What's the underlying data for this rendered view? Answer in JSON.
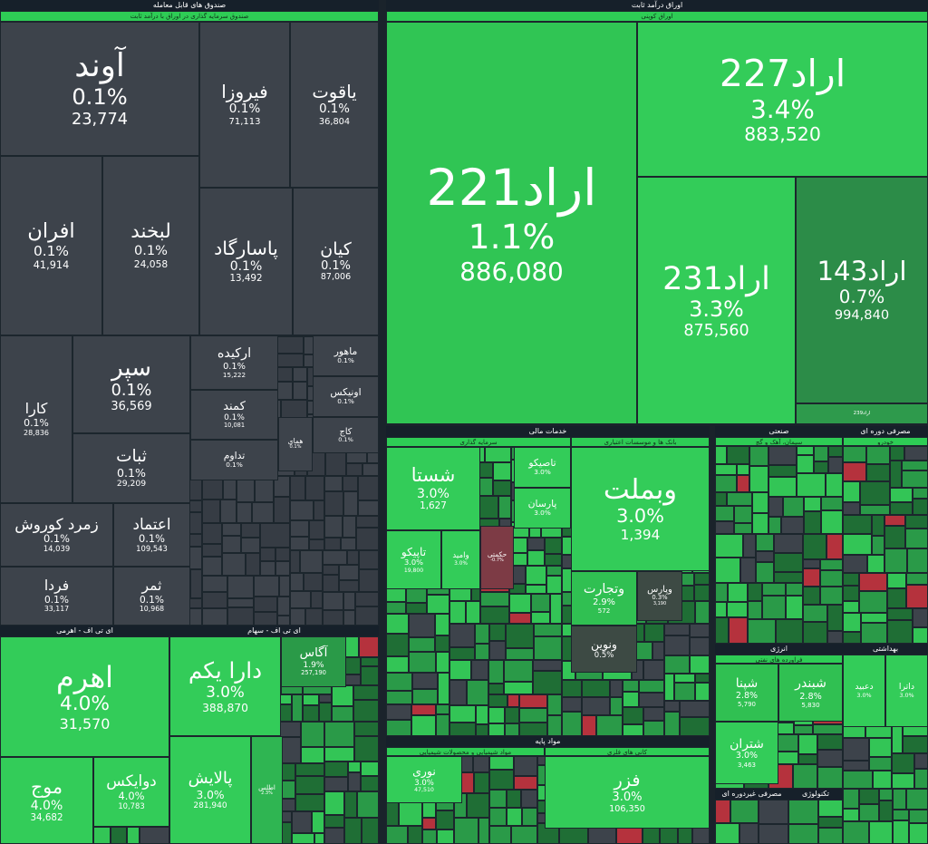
{
  "sections": [
    {
      "title": "صندوق های قابل معامله",
      "groups": [
        {
          "title": "صندوق سرمایه گذاری در اوراق با درآمد ثابت",
          "tiles": [
            {
              "name": "آوند",
              "change": "0.1%",
              "value": "23,774",
              "color": "#3d434b"
            },
            {
              "name": "فیروزا",
              "change": "0.1%",
              "value": "71,113",
              "color": "#3d434b"
            },
            {
              "name": "یاقوت",
              "change": "0.1%",
              "value": "36,804",
              "color": "#3d434b"
            },
            {
              "name": "افران",
              "change": "0.1%",
              "value": "41,914",
              "color": "#3d434b"
            },
            {
              "name": "لبخند",
              "change": "0.1%",
              "value": "24,058",
              "color": "#3d434b"
            },
            {
              "name": "پاسارگاد",
              "change": "0.1%",
              "value": "13,492",
              "color": "#3d434b"
            },
            {
              "name": "کیان",
              "change": "0.1%",
              "value": "87,006",
              "color": "#3d434b"
            },
            {
              "name": "کارا",
              "change": "0.1%",
              "value": "28,836",
              "color": "#3d434b"
            },
            {
              "name": "سپر",
              "change": "0.1%",
              "value": "36,569",
              "color": "#3d434b"
            },
            {
              "name": "ثبات",
              "change": "0.1%",
              "value": "29,209",
              "color": "#3d434b"
            },
            {
              "name": "ارکیده",
              "change": "0.1%",
              "value": "15,222",
              "color": "#3d434b"
            },
            {
              "name": "ماهور",
              "change": "0.1%",
              "color": "#3d434b"
            },
            {
              "name": "اونیکس",
              "change": "0.1%",
              "color": "#3d434b"
            },
            {
              "name": "کمند",
              "change": "0.1%",
              "value": "10,081",
              "color": "#3d434b"
            },
            {
              "name": "همای",
              "change": "0.1%",
              "color": "#3d434b"
            },
            {
              "name": "کاج",
              "change": "0.1%",
              "color": "#3d434b"
            },
            {
              "name": "تداوم",
              "change": "0.1%",
              "color": "#3d434b"
            },
            {
              "name": "زمرد کوروش",
              "change": "0.1%",
              "value": "14,039",
              "color": "#3d434b"
            },
            {
              "name": "اعتماد",
              "change": "0.1%",
              "value": "109,543",
              "color": "#3d434b"
            },
            {
              "name": "فردا",
              "change": "0.1%",
              "value": "33,117",
              "color": "#3d434b"
            },
            {
              "name": "ثمر",
              "change": "0.1%",
              "value": "10,968",
              "color": "#3d434b"
            }
          ]
        }
      ]
    },
    {
      "title": "اوراق درآمد ثابت",
      "groups": [
        {
          "title": "اوراق کوپنی",
          "tiles": [
            {
              "name": "اراد221",
              "change": "1.1%",
              "value": "886,080",
              "color": "#30c554"
            },
            {
              "name": "اراد227",
              "change": "3.4%",
              "value": "883,520",
              "color": "#33cc59"
            },
            {
              "name": "اراد231",
              "change": "3.3%",
              "value": "875,560",
              "color": "#33cc59"
            },
            {
              "name": "اراد143",
              "change": "0.7%",
              "value": "994,840",
              "color": "#2c8c48"
            },
            {
              "name": "اراد239",
              "color": "#2e9a4c"
            }
          ]
        }
      ]
    },
    {
      "title": "ای تی اف - اهرمی",
      "groups": [
        {
          "tiles": [
            {
              "name": "اهرم",
              "change": "4.0%",
              "value": "31,570",
              "color": "#33cc59"
            },
            {
              "name": "موج",
              "change": "4.0%",
              "value": "34,682",
              "color": "#33cc59"
            },
            {
              "name": "دوایکس",
              "change": "4.0%",
              "value": "10,783",
              "color": "#33cc59"
            }
          ]
        }
      ]
    },
    {
      "title": "ای تی اف - سهام",
      "groups": [
        {
          "tiles": [
            {
              "name": "دارا یکم",
              "change": "3.0%",
              "value": "388,870",
              "color": "#33cc59"
            },
            {
              "name": "پالایش",
              "change": "3.0%",
              "value": "281,940",
              "color": "#33cc59"
            },
            {
              "name": "آگاس",
              "change": "1.9%",
              "value": "257,190",
              "color": "#2a9a48"
            },
            {
              "name": "اطلس",
              "change": "2.3%",
              "color": "#2fb552"
            }
          ]
        }
      ]
    },
    {
      "title": "خدمات مالی",
      "groups": [
        {
          "title": "سرمایه گذاری",
          "tiles": [
            {
              "name": "شستا",
              "change": "3.0%",
              "value": "1,627",
              "color": "#33cc59"
            },
            {
              "name": "تاپیکو",
              "change": "3.0%",
              "value": "19,800",
              "color": "#33cc59"
            },
            {
              "name": "وامید",
              "change": "3.0%",
              "color": "#33cc59"
            },
            {
              "name": "حکمتی",
              "change": "-0.7%",
              "color": "#7d3b45"
            },
            {
              "name": "تاصیکو",
              "change": "3.0%",
              "color": "#33cc59"
            },
            {
              "name": "پارسان",
              "change": "3.0%",
              "color": "#33cc59"
            }
          ]
        },
        {
          "title": "بانک ها و موسسات اعتباری",
          "tiles": [
            {
              "name": "وبملت",
              "change": "3.0%",
              "value": "1,394",
              "color": "#33cc59"
            },
            {
              "name": "وتجارت",
              "change": "2.9%",
              "value": "572",
              "color": "#30c052"
            },
            {
              "name": "وپارس",
              "change": "0.3%",
              "value": "3,190",
              "color": "#3d4a44"
            },
            {
              "name": "ونوین",
              "change": "0.5%",
              "color": "#3d4a44"
            }
          ]
        }
      ]
    },
    {
      "title": "صنعتی",
      "groups": [
        {
          "title": "سیمان، آهک و گچ"
        }
      ]
    },
    {
      "title": "مصرفی دوره ای",
      "groups": [
        {
          "title": "خودرو"
        }
      ]
    },
    {
      "title": "انرژی",
      "groups": [
        {
          "title": "فراورده های نفتی",
          "tiles": [
            {
              "name": "شپنا",
              "change": "2.8%",
              "value": "5,790",
              "color": "#30c052"
            },
            {
              "name": "شتران",
              "change": "3.0%",
              "value": "3,463",
              "color": "#33cc59"
            },
            {
              "name": "شبندر",
              "change": "2.8%",
              "value": "5,830",
              "color": "#30c052"
            }
          ]
        }
      ]
    },
    {
      "title": "بهداشتی",
      "groups": [
        {
          "tiles": [
            {
              "name": "دعبید",
              "change": "3.0%",
              "color": "#33cc59"
            },
            {
              "name": "داترا",
              "change": "3.0%",
              "color": "#33cc59"
            }
          ]
        }
      ]
    },
    {
      "title": "مواد پایه",
      "groups": [
        {
          "title": "مواد شیمیایی و محصولات شیمیایی",
          "tiles": [
            {
              "name": "نوری",
              "change": "3.0%",
              "value": "47,510",
              "color": "#33cc59"
            }
          ]
        },
        {
          "title": "کانی های فلزی",
          "tiles": [
            {
              "name": "فزر",
              "change": "3.0%",
              "value": "106,350",
              "color": "#33cc59"
            }
          ]
        }
      ]
    },
    {
      "title": "مصرفی غیردوره ای",
      "groups": []
    },
    {
      "title": "تکنولوژی",
      "groups": []
    }
  ]
}
